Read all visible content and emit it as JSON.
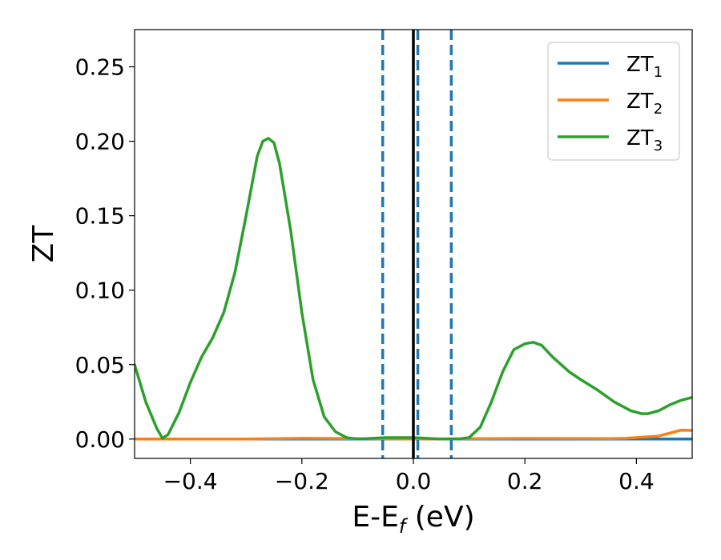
{
  "chart_data": {
    "type": "line",
    "title": "",
    "xlabel": {
      "main": "E-E",
      "sub": "f",
      "suffix": " (eV)"
    },
    "ylabel": "ZT",
    "xlim": [
      -0.5,
      0.5
    ],
    "ylim": [
      -0.013,
      0.275
    ],
    "grid": false,
    "legend_position": "top-right",
    "x_ticks": [
      -0.4,
      -0.2,
      0.0,
      0.2,
      0.4
    ],
    "x_tick_labels": [
      "−0.4",
      "−0.2",
      "0.0",
      "0.2",
      "0.4"
    ],
    "y_ticks": [
      0.0,
      0.05,
      0.1,
      0.15,
      0.2,
      0.25
    ],
    "y_tick_labels": [
      "0.00",
      "0.05",
      "0.10",
      "0.15",
      "0.20",
      "0.25"
    ],
    "vertical_lines": [
      {
        "x": -0.055,
        "style": "dashed",
        "color": "#1f77b4"
      },
      {
        "x": 0.008,
        "style": "dashed",
        "color": "#1f77b4"
      },
      {
        "x": 0.068,
        "style": "dashed",
        "color": "#1f77b4"
      },
      {
        "x": 0.0,
        "style": "solid",
        "color": "#000000"
      }
    ],
    "series": [
      {
        "name": "ZT",
        "sub": "1",
        "color": "#1f77b4",
        "x": [
          -0.5,
          0.5
        ],
        "y": [
          0.0,
          0.0
        ]
      },
      {
        "name": "ZT",
        "sub": "2",
        "color": "#ff7f0e",
        "x": [
          -0.5,
          -0.3,
          -0.2,
          -0.1,
          0.0,
          0.1,
          0.2,
          0.35,
          0.38,
          0.4,
          0.42,
          0.44,
          0.46,
          0.48,
          0.5
        ],
        "y": [
          0.0,
          0.0,
          0.0005,
          0.0003,
          0.0,
          0.0002,
          0.0004,
          0.0003,
          0.0005,
          0.001,
          0.0015,
          0.002,
          0.004,
          0.006,
          0.0058
        ]
      },
      {
        "name": "ZT",
        "sub": "3",
        "color": "#2ca02c",
        "x": [
          -0.5,
          -0.48,
          -0.46,
          -0.45,
          -0.44,
          -0.42,
          -0.4,
          -0.38,
          -0.36,
          -0.34,
          -0.32,
          -0.3,
          -0.28,
          -0.27,
          -0.26,
          -0.25,
          -0.24,
          -0.22,
          -0.2,
          -0.18,
          -0.16,
          -0.14,
          -0.12,
          -0.1,
          -0.05,
          0.0,
          0.05,
          0.08,
          0.1,
          0.12,
          0.14,
          0.16,
          0.18,
          0.2,
          0.215,
          0.23,
          0.25,
          0.28,
          0.3,
          0.33,
          0.36,
          0.39,
          0.41,
          0.42,
          0.44,
          0.46,
          0.48,
          0.5
        ],
        "y": [
          0.05,
          0.025,
          0.007,
          0.0005,
          0.003,
          0.018,
          0.038,
          0.055,
          0.068,
          0.085,
          0.112,
          0.15,
          0.19,
          0.2,
          0.202,
          0.199,
          0.185,
          0.14,
          0.085,
          0.04,
          0.015,
          0.005,
          0.001,
          0.0,
          0.001,
          0.001,
          0.0,
          0.0,
          0.001,
          0.008,
          0.025,
          0.045,
          0.06,
          0.064,
          0.065,
          0.063,
          0.055,
          0.045,
          0.04,
          0.033,
          0.025,
          0.019,
          0.017,
          0.017,
          0.019,
          0.023,
          0.026,
          0.028
        ]
      }
    ]
  }
}
